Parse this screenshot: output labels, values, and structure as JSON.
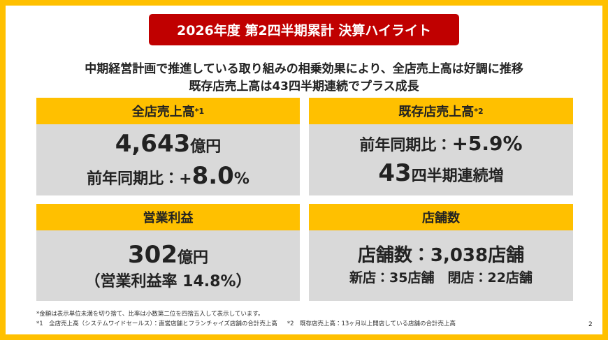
{
  "title": "2026年度 第2四半期累計 決算ハイライト",
  "subtitle": [
    "中期経営計画で推進している取り組みの相乗効果により、全店売上高は好調に推移",
    "既存店売上高は43四半期連続でプラス成長"
  ],
  "panels": [
    {
      "header": "全店売上高",
      "header_note": "*1",
      "lines": [
        [
          "4,643",
          "億円"
        ],
        [
          "前年同期比：+",
          "8.0",
          "%"
        ]
      ]
    },
    {
      "header": "既存店売上高",
      "header_note": "*2",
      "lines": [
        [
          "前年同期比：",
          "+5.9%"
        ],
        [
          "43",
          "四半期連続増"
        ]
      ]
    },
    {
      "header": "営業利益",
      "lines": [
        [
          "302",
          "億円"
        ],
        [
          "（営業利益率 14.8%）"
        ]
      ]
    },
    {
      "header": "店舗数",
      "lines": [
        [
          "店舗数：3,038店舗"
        ],
        [
          "新店：35店舗　閉店：22店舗"
        ]
      ]
    }
  ],
  "footnotes": [
    "*金額は表示単位未満を切り捨て、比率は小数第二位を四捨五入して表示しています。",
    "*1　全店売上高（システムワイドセールス）：直営店舗とフランチャイズ店舗の合計売上高",
    "*2　既存店売上高：13ヶ月以上開店している店舗の合計売上高"
  ],
  "page_number": "2"
}
